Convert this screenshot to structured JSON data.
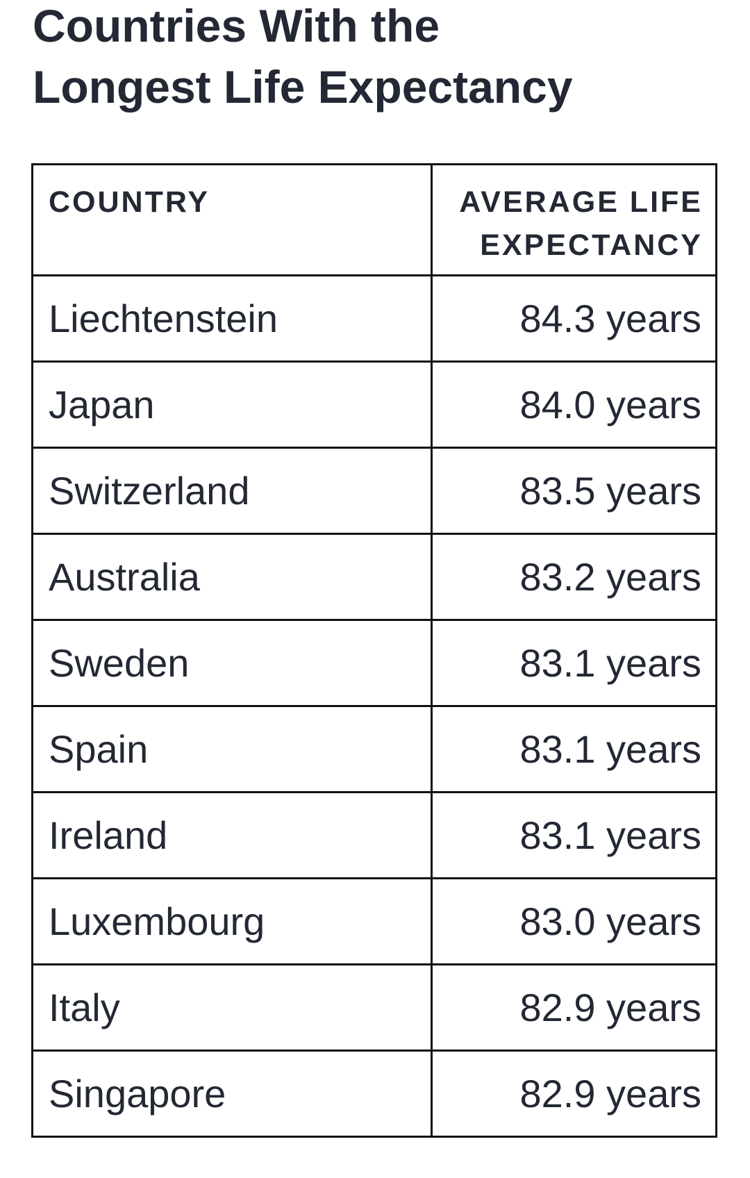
{
  "page": {
    "title": "Countries With the Longest Life Expectancy"
  },
  "chart_data": {
    "type": "table",
    "title": "Countries With the Longest Life Expectancy",
    "columns": [
      "COUNTRY",
      "AVERAGE LIFE EXPECTANCY"
    ],
    "rows": [
      [
        "Liechtenstein",
        "84.3 years"
      ],
      [
        "Japan",
        "84.0 years"
      ],
      [
        "Switzerland",
        "83.5 years"
      ],
      [
        "Australia",
        "83.2 years"
      ],
      [
        "Sweden",
        "83.1 years"
      ],
      [
        "Spain",
        "83.1 years"
      ],
      [
        "Ireland",
        "83.1 years"
      ],
      [
        "Luxembourg",
        "83.0 years"
      ],
      [
        "Italy",
        "82.9 years"
      ],
      [
        "Singapore",
        "82.9 years"
      ]
    ],
    "values_numeric": [
      84.3,
      84.0,
      83.5,
      83.2,
      83.1,
      83.1,
      83.1,
      83.0,
      82.9,
      82.9
    ],
    "unit": "years",
    "layout": {
      "header_alignment": [
        "left",
        "right"
      ],
      "value_alignment": "right",
      "grid": "full-borders"
    }
  },
  "colors": {
    "text": "#232834",
    "border": "#101114",
    "background": "#ffffff"
  }
}
